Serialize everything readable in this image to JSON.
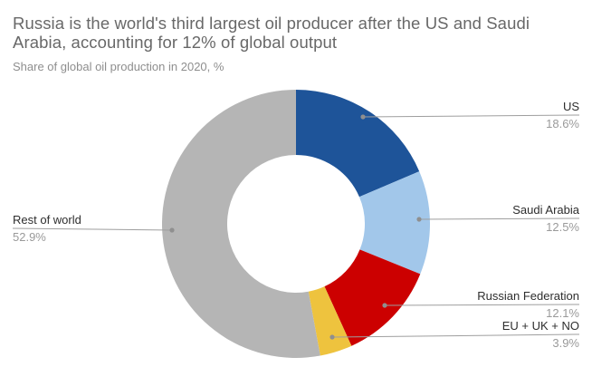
{
  "header": {
    "title": "Russia is the world's third largest oil producer after the US and Saudi Arabia, accounting for 12% of global output",
    "subtitle": "Share of global oil production in 2020, %"
  },
  "chart_data": {
    "type": "pie",
    "subtype": "donut",
    "title": "Russia is the world's third largest oil producer after the US and Saudi Arabia, accounting for 12% of global output",
    "subtitle": "Share of global oil production in 2020, %",
    "unit": "%",
    "start_angle_deg": 0,
    "direction": "clockwise",
    "inner_radius_ratio": 0.51,
    "legend_position": "outside-callout-labels",
    "slices": [
      {
        "label": "US",
        "value": 18.6,
        "display": "18.6%",
        "color": "#1e5499",
        "label_side": "right"
      },
      {
        "label": "Saudi Arabia",
        "value": 12.5,
        "display": "12.5%",
        "color": "#a2c7ea",
        "label_side": "right"
      },
      {
        "label": "Russian Federation",
        "value": 12.1,
        "display": "12.1%",
        "color": "#cc0000",
        "label_side": "right"
      },
      {
        "label": "EU + UK + NO",
        "value": 3.9,
        "display": "3.9%",
        "color": "#eec33e",
        "label_side": "right"
      },
      {
        "label": "Rest of world",
        "value": 52.9,
        "display": "52.9%",
        "color": "#b5b5b5",
        "label_side": "left"
      }
    ],
    "style": {
      "connector_color": "#9e9e9e",
      "connector_dot_color": "#8f8f8f",
      "label_color": "#2e2e2e",
      "value_color": "#9a9a9a",
      "title_color": "#686868",
      "subtitle_color": "#8e8e8e",
      "background": "#ffffff"
    }
  }
}
